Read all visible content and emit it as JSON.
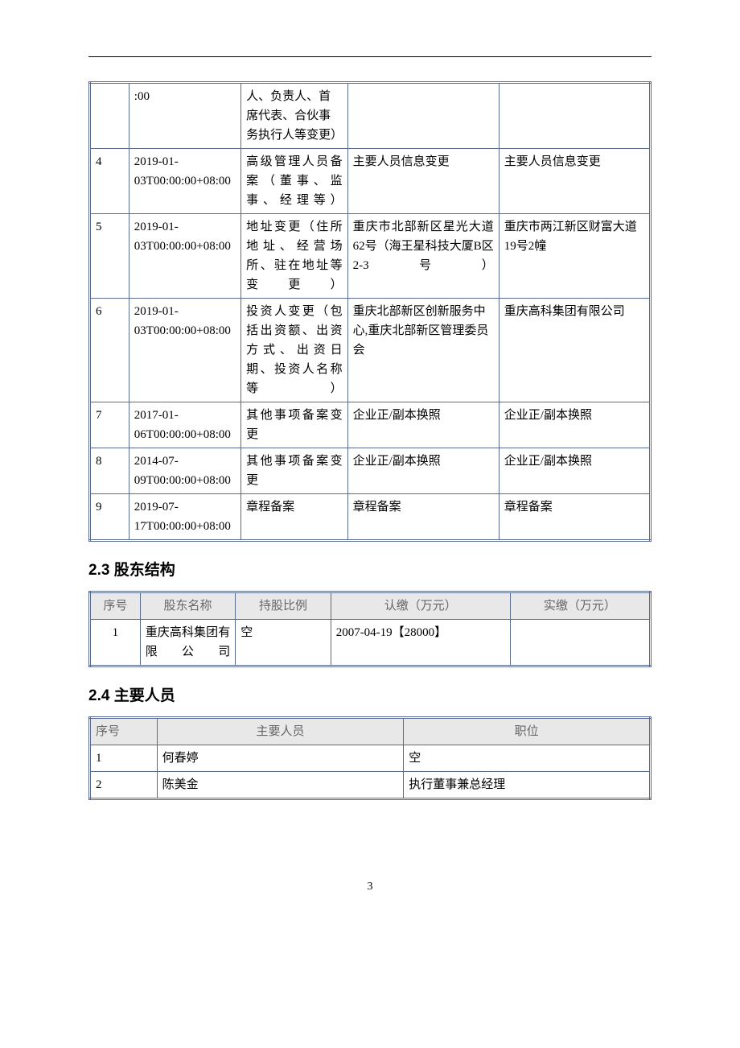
{
  "table1": {
    "rows": [
      {
        "num": "",
        "date": ":00",
        "change_item": "人、负责人、首席代表、合伙事务执行人等变更）",
        "before": "",
        "after": ""
      },
      {
        "num": "4",
        "date": "2019-01-03T00:00:00+08:00",
        "change_item": "高级管理人员备案（董事、监事、经理等）",
        "change_item_justified": true,
        "before": "主要人员信息变更",
        "after": "主要人员信息变更"
      },
      {
        "num": "5",
        "date": "2019-01-03T00:00:00+08:00",
        "change_item": "地址变更（住所地址、经营场所、驻在地址等变更）",
        "change_item_justified": true,
        "before": "重庆市北部新区星光大道62号（海王星科技大厦B区2-3号）",
        "before_justified": true,
        "after": "重庆市两江新区财富大道19号2幢"
      },
      {
        "num": "6",
        "date": "2019-01-03T00:00:00+08:00",
        "change_item": "投资人变更（包括出资额、出资方式、出资日期、投资人名称等）",
        "change_item_justified": true,
        "before": "重庆北部新区创新服务中心,重庆北部新区管理委员会",
        "after": "重庆高科集团有限公司"
      },
      {
        "num": "7",
        "date": "2017-01-06T00:00:00+08:00",
        "change_item": "其他事项备案变更",
        "change_item_justified": true,
        "before": "企业正/副本换照",
        "after": "企业正/副本换照"
      },
      {
        "num": "8",
        "date": "2014-07-09T00:00:00+08:00",
        "change_item": "其他事项备案变更",
        "change_item_justified": true,
        "before": "企业正/副本换照",
        "after": "企业正/副本换照"
      },
      {
        "num": "9",
        "date": "2019-07-17T00:00:00+08:00",
        "change_item": "章程备案",
        "before": "章程备案",
        "after": "章程备案"
      }
    ]
  },
  "section23": {
    "title": "2.3 股东结构",
    "headers": [
      "序号",
      "股东名称",
      "持股比例",
      "认缴（万元）",
      "实缴（万元）"
    ],
    "rows": [
      {
        "num": "1",
        "name": "重庆高科集团有限公司",
        "name_justified": true,
        "ratio": "空",
        "subscribed": "2007-04-19【28000】",
        "paid": ""
      }
    ]
  },
  "section24": {
    "title": "2.4 主要人员",
    "headers": [
      "序号",
      "主要人员",
      "职位"
    ],
    "rows": [
      {
        "num": "1",
        "name": "何春婷",
        "position": "空"
      },
      {
        "num": "2",
        "name": "陈美金",
        "position": "执行董事兼总经理"
      }
    ]
  },
  "page_number": "3"
}
